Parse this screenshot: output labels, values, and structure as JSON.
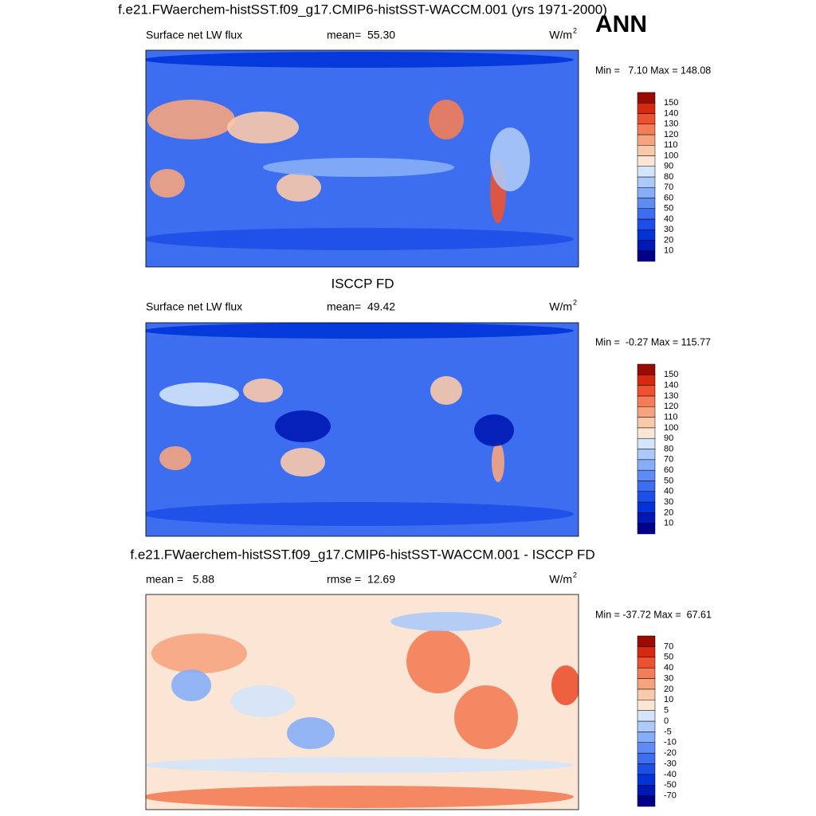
{
  "title": "ANN",
  "panels": [
    {
      "title": "f.e21.FWaerchem-histSST.f09_g17.CMIP6-histSST-WACCM.001 (yrs 1971-2000)",
      "left_label": "Surface net LW flux",
      "center_label": "mean=  55.30",
      "units": "W/m",
      "units_sup": "2",
      "stats": "Min =   7.10 Max = 148.08",
      "colorbar": {
        "levels": [
          10,
          20,
          30,
          40,
          50,
          60,
          70,
          80,
          90,
          100,
          110,
          120,
          130,
          140,
          150
        ],
        "colors": [
          "#00008a",
          "#0018b4",
          "#0033d8",
          "#1d4fe8",
          "#3d6ef0",
          "#5e8cf3",
          "#86aef6",
          "#adc9f8",
          "#d3e4fb",
          "#fbe6d6",
          "#f9c9ab",
          "#f6a480",
          "#f37d57",
          "#ec5230",
          "#d52a10",
          "#9a0b03"
        ]
      }
    },
    {
      "title": "ISCCP FD",
      "left_label": "Surface net LW flux",
      "center_label": "mean=  49.42",
      "units": "W/m",
      "units_sup": "2",
      "stats": "Min =  -0.27 Max = 115.77",
      "colorbar": {
        "levels": [
          10,
          20,
          30,
          40,
          50,
          60,
          70,
          80,
          90,
          100,
          110,
          120,
          130,
          140,
          150
        ],
        "colors": [
          "#00008a",
          "#0018b4",
          "#0033d8",
          "#1d4fe8",
          "#3d6ef0",
          "#5e8cf3",
          "#86aef6",
          "#adc9f8",
          "#d3e4fb",
          "#fbe6d6",
          "#f9c9ab",
          "#f6a480",
          "#f37d57",
          "#ec5230",
          "#d52a10",
          "#9a0b03"
        ]
      }
    },
    {
      "title": "f.e21.FWaerchem-histSST.f09_g17.CMIP6-histSST-WACCM.001 - ISCCP FD",
      "left_label": "mean =   5.88",
      "center_label": "rmse =  12.69",
      "units": "W/m",
      "units_sup": "2",
      "stats": "Min = -37.72 Max =  67.61",
      "colorbar": {
        "levels": [
          -70,
          -50,
          -40,
          -30,
          -20,
          -10,
          -5,
          0,
          5,
          10,
          20,
          30,
          40,
          50,
          70
        ],
        "colors": [
          "#00008a",
          "#0018b4",
          "#0033d8",
          "#1d4fe8",
          "#3d6ef0",
          "#5e8cf3",
          "#86aef6",
          "#adc9f8",
          "#d3e4fb",
          "#fbe6d6",
          "#f9c9ab",
          "#f6a480",
          "#f37d57",
          "#ec5230",
          "#d52a10",
          "#9a0b03"
        ]
      }
    }
  ]
}
